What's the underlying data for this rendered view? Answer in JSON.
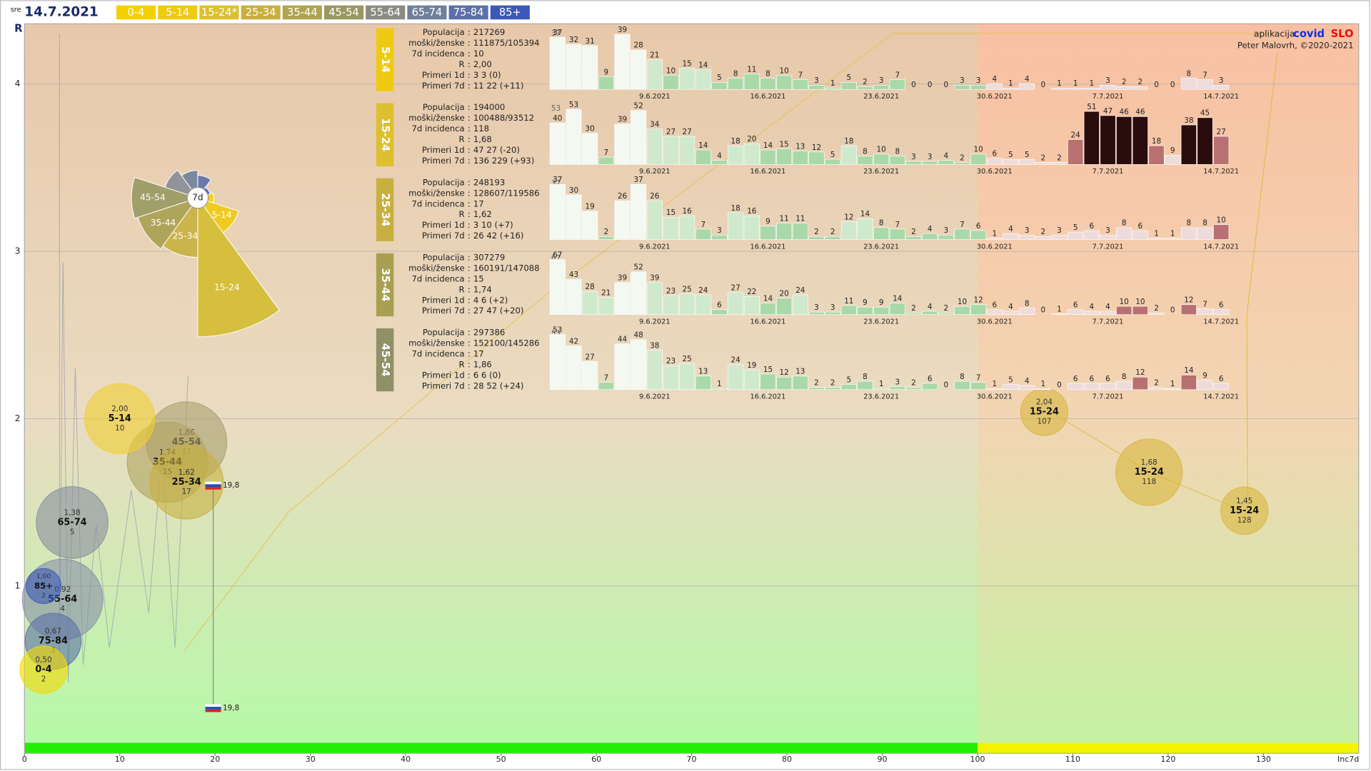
{
  "header": {
    "weekday": "sre",
    "date": "14.7.2021",
    "legend": [
      {
        "label": "0-4",
        "color": "#f5d000"
      },
      {
        "label": "5-14",
        "color": "#efca12"
      },
      {
        "label": "15-24*",
        "color": "#dcc030"
      },
      {
        "label": "25-34",
        "color": "#c8b040"
      },
      {
        "label": "35-44",
        "color": "#b0a450"
      },
      {
        "label": "45-54",
        "color": "#989860"
      },
      {
        "label": "55-64",
        "color": "#8a8c80"
      },
      {
        "label": "65-74",
        "color": "#70809a"
      },
      {
        "label": "75-84",
        "color": "#5c70a8"
      },
      {
        "label": "85+",
        "color": "#3c58b8"
      }
    ],
    "app_prefix": "aplikacija",
    "app_a": "covid",
    "app_b": "SLO",
    "author": "Peter Malovrh, ©2020-2021"
  },
  "separator": ":",
  "palette": [
    "#f3f8f1",
    "#cfe9cc",
    "#a9d9a9",
    "#eedcdc",
    "#b87070",
    "#2a0c0c"
  ],
  "chart_data": [
    {
      "type": "bubble",
      "xlabel": "Inc7d",
      "ylabel": "R",
      "xlim": [
        0,
        140
      ],
      "ylim": [
        0,
        4.36
      ],
      "threshold": 100,
      "xticks": [
        0,
        10,
        20,
        30,
        40,
        50,
        60,
        70,
        80,
        90,
        100,
        110,
        120,
        130
      ],
      "yticks": [
        1,
        2,
        3,
        4
      ],
      "grid": true,
      "categories": [
        "15-24",
        "15-24",
        "15-24",
        "45-54",
        "35-44",
        "25-34",
        "5-14",
        "65-74",
        "55-64",
        "85+",
        "75-84",
        "0-4"
      ],
      "x": [
        107,
        118,
        128,
        17,
        15,
        17,
        10,
        5,
        4,
        2,
        3,
        2
      ],
      "values": [
        2.04,
        1.68,
        1.45,
        1.86,
        1.74,
        1.62,
        2.0,
        1.38,
        0.92,
        1.0,
        0.67,
        0.5
      ],
      "value_labels": [
        "2,04",
        "1,68",
        "1,45",
        "1,86",
        "1,74",
        "1,62",
        "2,00",
        "1,38",
        "0,92",
        "1,00",
        "0,67",
        "0,50"
      ],
      "sizes": [
        27,
        38,
        27,
        46,
        46,
        42,
        40,
        41,
        46,
        20,
        32,
        27
      ],
      "colors": [
        "#d8b840",
        "#d8b840",
        "#d8b840",
        "#a8a070",
        "#b0a460",
        "#c8b040",
        "#efcf30",
        "#8890a0",
        "#8890a8",
        "#3c58b8",
        "#5c70a8",
        "#f5d800"
      ],
      "annotations": [
        {
          "label": "19,8",
          "x": 19.8,
          "y": 1.6
        },
        {
          "label": "19,8",
          "x": 19.8,
          "y": 0.27
        }
      ]
    },
    {
      "type": "rose",
      "center_label": "7d",
      "categories": [
        null,
        "5-14",
        "15-24",
        "25-34",
        "35-44",
        "45-54",
        null,
        null,
        null,
        null
      ],
      "values": [
        3,
        22,
        229,
        42,
        47,
        52,
        14,
        9,
        6,
        2
      ],
      "colors": [
        "#f5d000",
        "#efca12",
        "#d4bc30",
        "#c8b040",
        "#a8a050",
        "#989860",
        "#8a8c98",
        "#70809a",
        "#5c70a8",
        "#3c58b8"
      ]
    },
    {
      "type": "bar",
      "title": "5-14",
      "color": "#efca12",
      "lead_value": 37,
      "info": [
        [
          "Populacija",
          "217269"
        ],
        [
          "moški/ženske",
          "111875/105394"
        ],
        [
          "7d incidenca",
          "10"
        ],
        [
          "R",
          "2,00"
        ],
        [
          "Primeri 1d",
          "3 3 (0)"
        ],
        [
          "Primeri 7d",
          "11 22 (+11)"
        ]
      ],
      "categories": [
        null,
        null,
        null,
        null,
        null,
        null,
        "9.6.2021",
        null,
        null,
        null,
        null,
        null,
        null,
        "16.6.2021",
        null,
        null,
        null,
        null,
        null,
        null,
        "23.6.2021",
        null,
        null,
        null,
        null,
        null,
        null,
        "30.6.2021",
        null,
        null,
        null,
        null,
        null,
        null,
        "7.7.2021",
        null,
        null,
        null,
        null,
        null,
        null,
        "14.7.2021"
      ],
      "values": [
        37,
        32,
        31,
        9,
        39,
        28,
        21,
        10,
        15,
        14,
        5,
        8,
        11,
        8,
        10,
        7,
        3,
        1,
        5,
        2,
        3,
        7,
        0,
        0,
        0,
        3,
        3,
        4,
        1,
        4,
        0,
        1,
        1,
        1,
        3,
        2,
        2,
        0,
        0,
        8,
        7,
        3
      ]
    },
    {
      "type": "bar",
      "title": "15-24",
      "color": "#dcc030",
      "lead_value": 53,
      "info": [
        [
          "Populacija",
          "194000"
        ],
        [
          "moški/ženske",
          "100488/93512"
        ],
        [
          "7d incidenca",
          "118"
        ],
        [
          "R",
          "1,68"
        ],
        [
          "Primeri 1d",
          "47 27 (-20)"
        ],
        [
          "Primeri 7d",
          "136 229 (+93)"
        ]
      ],
      "categories": [
        null,
        null,
        null,
        null,
        null,
        null,
        "9.6.2021",
        null,
        null,
        null,
        null,
        null,
        null,
        "16.6.2021",
        null,
        null,
        null,
        null,
        null,
        null,
        "23.6.2021",
        null,
        null,
        null,
        null,
        null,
        null,
        "30.6.2021",
        null,
        null,
        null,
        null,
        null,
        null,
        "7.7.2021",
        null,
        null,
        null,
        null,
        null,
        null,
        "14.7.2021"
      ],
      "values": [
        40,
        53,
        30,
        7,
        39,
        52,
        34,
        27,
        27,
        14,
        4,
        18,
        20,
        14,
        15,
        13,
        12,
        5,
        18,
        8,
        10,
        8,
        3,
        3,
        4,
        2,
        10,
        6,
        5,
        5,
        2,
        2,
        24,
        51,
        47,
        46,
        46,
        18,
        9,
        38,
        45,
        27
      ]
    },
    {
      "type": "bar",
      "title": "25-34",
      "color": "#c8b040",
      "lead_value": 37,
      "info": [
        [
          "Populacija",
          "248193"
        ],
        [
          "moški/ženske",
          "128607/119586"
        ],
        [
          "7d incidenca",
          "17"
        ],
        [
          "R",
          "1,62"
        ],
        [
          "Primeri 1d",
          "3 10 (+7)"
        ],
        [
          "Primeri 7d",
          "26 42 (+16)"
        ]
      ],
      "categories": [
        null,
        null,
        null,
        null,
        null,
        null,
        "9.6.2021",
        null,
        null,
        null,
        null,
        null,
        null,
        "16.6.2021",
        null,
        null,
        null,
        null,
        null,
        null,
        "23.6.2021",
        null,
        null,
        null,
        null,
        null,
        null,
        "30.6.2021",
        null,
        null,
        null,
        null,
        null,
        null,
        "7.7.2021",
        null,
        null,
        null,
        null,
        null,
        null,
        "14.7.2021"
      ],
      "values": [
        37,
        30,
        19,
        2,
        26,
        37,
        26,
        15,
        16,
        7,
        3,
        18,
        16,
        9,
        11,
        11,
        2,
        2,
        12,
        14,
        8,
        7,
        2,
        4,
        3,
        7,
        6,
        1,
        4,
        3,
        2,
        3,
        5,
        6,
        3,
        8,
        6,
        1,
        1,
        8,
        8,
        10
      ]
    },
    {
      "type": "bar",
      "title": "35-44",
      "color": "#a8a050",
      "lead_value": 67,
      "info": [
        [
          "Populacija",
          "307279"
        ],
        [
          "moški/ženske",
          "160191/147088"
        ],
        [
          "7d incidenca",
          "15"
        ],
        [
          "R",
          "1,74"
        ],
        [
          "Primeri 1d",
          "4 6 (+2)"
        ],
        [
          "Primeri 7d",
          "27 47 (+20)"
        ]
      ],
      "categories": [
        null,
        null,
        null,
        null,
        null,
        null,
        "9.6.2021",
        null,
        null,
        null,
        null,
        null,
        null,
        "16.6.2021",
        null,
        null,
        null,
        null,
        null,
        null,
        "23.6.2021",
        null,
        null,
        null,
        null,
        null,
        null,
        "30.6.2021",
        null,
        null,
        null,
        null,
        null,
        null,
        "7.7.2021",
        null,
        null,
        null,
        null,
        null,
        null,
        "14.7.2021"
      ],
      "values": [
        67,
        43,
        28,
        21,
        39,
        52,
        39,
        23,
        25,
        24,
        6,
        27,
        22,
        14,
        20,
        24,
        3,
        3,
        11,
        9,
        9,
        14,
        2,
        4,
        2,
        10,
        12,
        6,
        4,
        8,
        0,
        1,
        6,
        4,
        4,
        10,
        10,
        2,
        0,
        12,
        7,
        6
      ]
    },
    {
      "type": "bar",
      "title": "45-54",
      "color": "#8f8f68",
      "lead_value": 53,
      "info": [
        [
          "Populacija",
          "297386"
        ],
        [
          "moški/ženske",
          "152100/145286"
        ],
        [
          "7d incidenca",
          "17"
        ],
        [
          "R",
          "1,86"
        ],
        [
          "Primeri 1d",
          "6 6 (0)"
        ],
        [
          "Primeri 7d",
          "28 52 (+24)"
        ]
      ],
      "categories": [
        null,
        null,
        null,
        null,
        null,
        null,
        "9.6.2021",
        null,
        null,
        null,
        null,
        null,
        null,
        "16.6.2021",
        null,
        null,
        null,
        null,
        null,
        null,
        "23.6.2021",
        null,
        null,
        null,
        null,
        null,
        null,
        "30.6.2021",
        null,
        null,
        null,
        null,
        null,
        null,
        "7.7.2021",
        null,
        null,
        null,
        null,
        null,
        null,
        "14.7.2021"
      ],
      "values": [
        53,
        42,
        27,
        7,
        44,
        48,
        38,
        23,
        25,
        13,
        1,
        24,
        19,
        15,
        12,
        13,
        2,
        2,
        5,
        8,
        1,
        3,
        2,
        6,
        0,
        8,
        7,
        1,
        5,
        4,
        1,
        0,
        6,
        6,
        6,
        8,
        12,
        2,
        1,
        14,
        9,
        6
      ]
    }
  ]
}
